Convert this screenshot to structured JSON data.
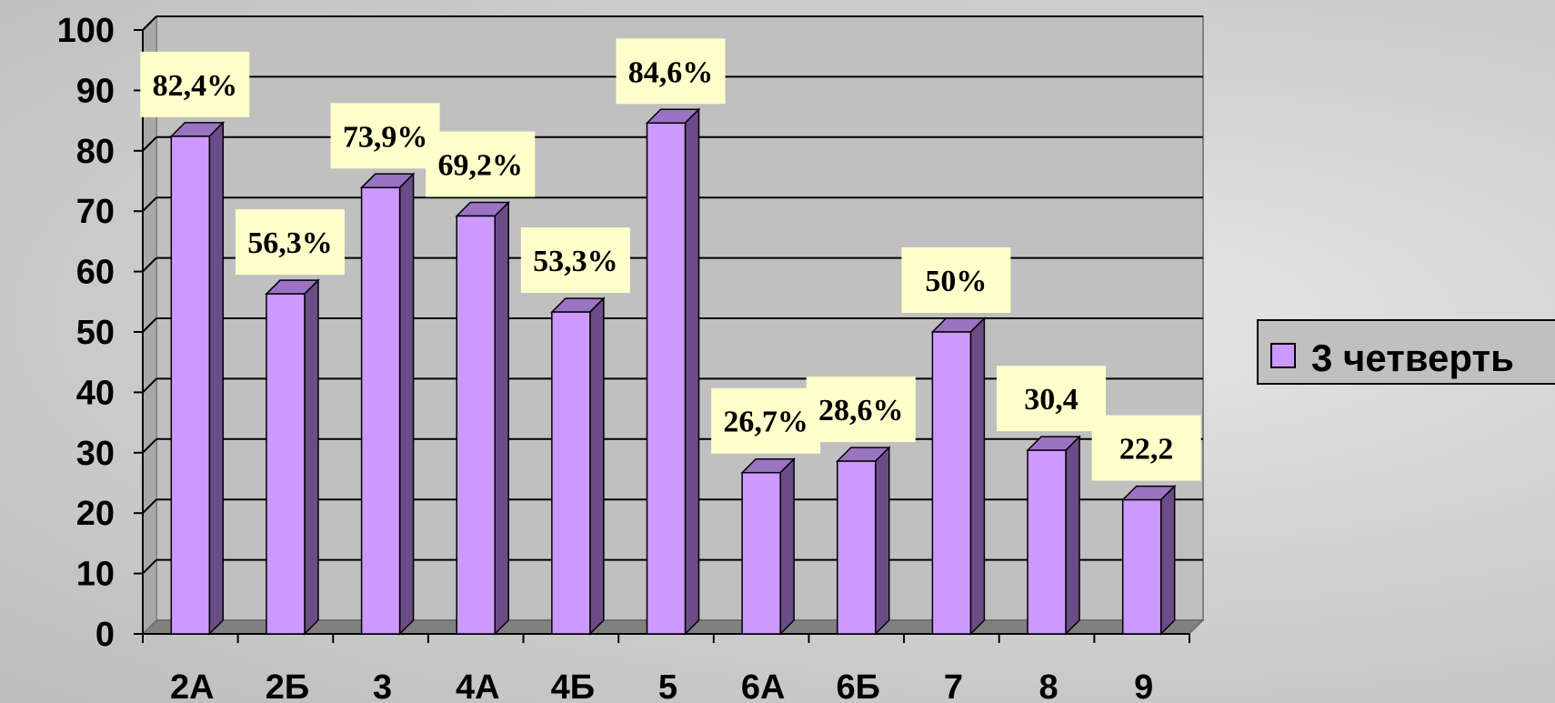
{
  "chart_data": {
    "type": "bar",
    "categories": [
      "2А",
      "2Б",
      "3",
      "4А",
      "4Б",
      "5",
      "6А",
      "6Б",
      "7",
      "8",
      "9"
    ],
    "series": [
      {
        "name": "3 четверть",
        "values": [
          82.4,
          56.3,
          73.9,
          69.2,
          53.3,
          84.6,
          26.7,
          28.6,
          50,
          30.4,
          22.2
        ],
        "labels": [
          "82,4%",
          "56,3%",
          "73,9%",
          "69,2%",
          "53,3%",
          "84,6%",
          "26,7%",
          "28,6%",
          "50%",
          "30,4",
          "22,2"
        ]
      }
    ],
    "yticks": [
      "0",
      "10",
      "20",
      "30",
      "40",
      "50",
      "60",
      "70",
      "80",
      "90",
      "100"
    ],
    "ylim": [
      0,
      100
    ],
    "grid": true,
    "legend": "right",
    "colors": {
      "bar_front": "#cc99ff",
      "bar_side": "#6a4c86",
      "bar_top": "#9a73c2",
      "plot_back": "#c0c0c0",
      "plot_floor": "#808080",
      "label_bg": "#ffffcc"
    }
  }
}
